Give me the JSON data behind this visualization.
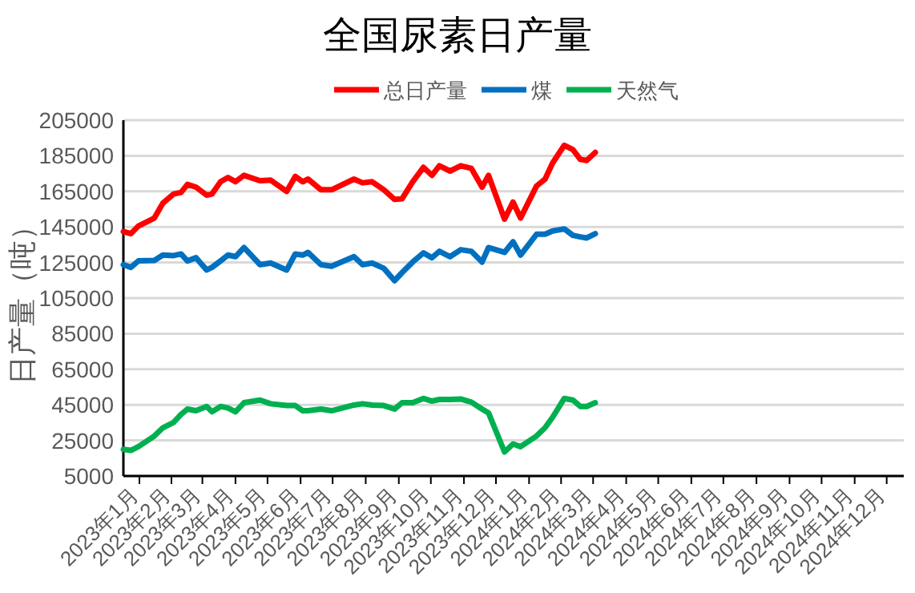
{
  "chart_data": {
    "type": "line",
    "title": "全国尿素日产量",
    "ylabel": "日产量（吨）",
    "legend": "top",
    "grid": "y",
    "marker": "none",
    "line_style": "solid",
    "x": [
      "2023-01-01",
      "2023-01-08",
      "2023-01-15",
      "2023-01-30",
      "2023-02-07",
      "2023-02-17",
      "2023-02-24",
      "2023-03-02",
      "2023-03-10",
      "2023-03-20",
      "2023-03-25",
      "2023-04-02",
      "2023-04-09",
      "2023-04-16",
      "2023-04-24",
      "2023-05-09",
      "2023-05-19",
      "2023-06-03",
      "2023-06-11",
      "2023-06-18",
      "2023-06-23",
      "2023-07-05",
      "2023-07-15",
      "2023-08-05",
      "2023-08-13",
      "2023-08-22",
      "2023-09-02",
      "2023-09-12",
      "2023-09-19",
      "2023-09-29",
      "2023-10-09",
      "2023-10-17",
      "2023-10-24",
      "2023-11-03",
      "2023-11-13",
      "2023-11-23",
      "2023-12-03",
      "2023-12-09",
      "2023-12-24",
      "2024-01-01",
      "2024-01-08",
      "2024-01-23",
      "2024-01-31",
      "2024-02-07",
      "2024-02-18",
      "2024-02-26",
      "2024-03-04",
      "2024-03-10",
      "2024-03-18"
    ],
    "series": [
      {
        "name": "总日产量",
        "color": "#ff0000",
        "values": [
          142400,
          141200,
          145500,
          150000,
          158400,
          163500,
          164400,
          168900,
          167400,
          162900,
          163500,
          170400,
          172800,
          170400,
          174000,
          171000,
          171300,
          165000,
          173400,
          170400,
          171900,
          165900,
          165900,
          171900,
          169800,
          170400,
          165900,
          160500,
          160800,
          170400,
          178500,
          174000,
          179400,
          176400,
          179400,
          177900,
          167400,
          174000,
          149400,
          159000,
          150000,
          168000,
          171900,
          180900,
          190900,
          188500,
          183000,
          182400,
          186900
        ]
      },
      {
        "name": "煤",
        "color": "#0070c0",
        "values": [
          123800,
          122300,
          125900,
          126200,
          129200,
          128900,
          129800,
          125900,
          127700,
          120800,
          122300,
          125900,
          129200,
          128300,
          133400,
          123800,
          124700,
          120800,
          129800,
          129200,
          130700,
          123800,
          122900,
          128300,
          123800,
          124700,
          121700,
          114800,
          119300,
          125300,
          130400,
          127700,
          131300,
          128300,
          132200,
          131300,
          125300,
          133400,
          130700,
          136700,
          129200,
          140900,
          140900,
          142700,
          143900,
          140300,
          139400,
          138800,
          141200
        ]
      },
      {
        "name": "天然气",
        "color": "#00b050",
        "values": [
          20000,
          19400,
          21500,
          27500,
          32100,
          35100,
          39600,
          42600,
          41700,
          44100,
          41100,
          44100,
          43200,
          41100,
          46200,
          47700,
          45600,
          44600,
          44600,
          41700,
          41700,
          42600,
          41700,
          44900,
          45600,
          44900,
          44600,
          42600,
          46200,
          46200,
          48600,
          47100,
          48000,
          48000,
          48300,
          46500,
          42600,
          40500,
          18500,
          23000,
          21500,
          27500,
          32100,
          38000,
          48600,
          47700,
          44100,
          44100,
          46200
        ]
      }
    ],
    "xlim": [
      "2023-01-01",
      "2025-01-01"
    ],
    "xticks": [
      {
        "value": "2023-01-16",
        "label": "2023年1月"
      },
      {
        "value": "2023-02-15",
        "label": "2023年2月"
      },
      {
        "value": "2023-03-16",
        "label": "2023年3月"
      },
      {
        "value": "2023-04-16",
        "label": "2023年4月"
      },
      {
        "value": "2023-05-16",
        "label": "2023年5月"
      },
      {
        "value": "2023-06-16",
        "label": "2023年6月"
      },
      {
        "value": "2023-07-16",
        "label": "2023年7月"
      },
      {
        "value": "2023-08-16",
        "label": "2023年8月"
      },
      {
        "value": "2023-09-16",
        "label": "2023年9月"
      },
      {
        "value": "2023-10-16",
        "label": "2023年10月"
      },
      {
        "value": "2023-11-16",
        "label": "2023年11月"
      },
      {
        "value": "2023-12-16",
        "label": "2023年12月"
      },
      {
        "value": "2024-01-16",
        "label": "2024年1月"
      },
      {
        "value": "2024-02-15",
        "label": "2024年2月"
      },
      {
        "value": "2024-03-16",
        "label": "2024年3月"
      },
      {
        "value": "2024-04-16",
        "label": "2024年4月"
      },
      {
        "value": "2024-05-16",
        "label": "2024年5月"
      },
      {
        "value": "2024-06-16",
        "label": "2024年6月"
      },
      {
        "value": "2024-07-16",
        "label": "2024年7月"
      },
      {
        "value": "2024-08-16",
        "label": "2024年8月"
      },
      {
        "value": "2024-09-16",
        "label": "2024年9月"
      },
      {
        "value": "2024-10-16",
        "label": "2024年10月"
      },
      {
        "value": "2024-11-16",
        "label": "2024年11月"
      },
      {
        "value": "2024-12-16",
        "label": "2024年12月"
      }
    ],
    "ylim": [
      5000,
      205000
    ],
    "yticks": [
      5000,
      25000,
      45000,
      65000,
      85000,
      105000,
      125000,
      145000,
      165000,
      185000,
      205000
    ]
  }
}
